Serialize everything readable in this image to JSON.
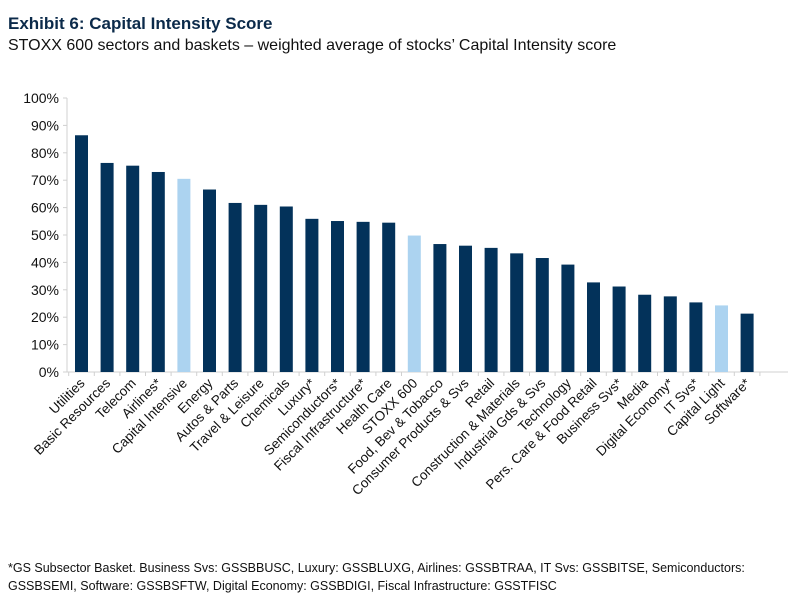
{
  "title": "Exhibit 6: Capital Intensity Score",
  "subtitle": "STOXX 600 sectors and baskets – weighted average of stocks’ Capital Intensity score",
  "footnote": "*GS Subsector Basket. Business Svs: GSSBBUSC, Luxury: GSSBLUXG, Airlines: GSSBTRAA, IT Svs: GSSBITSE, Semiconductors: GSSBSEMI, Software: GSSBSFTW, Digital Economy: GSSBDIGI, Fiscal Infrastructure: GSSTFISC",
  "colors": {
    "sector": "#03325a",
    "basket_highlight": "#acd3f0"
  },
  "chart_data": {
    "type": "bar",
    "title": "",
    "xlabel": "",
    "ylabel": "",
    "ylim": [
      0,
      100
    ],
    "yticks": [
      "0%",
      "10%",
      "20%",
      "30%",
      "40%",
      "50%",
      "60%",
      "70%",
      "80%",
      "90%",
      "100%"
    ],
    "grid": false,
    "categories": [
      "Utilities",
      "Basic Resources",
      "Telecom",
      "Airlines*",
      "Capital Intensive",
      "Energy",
      "Autos & Parts",
      "Travel & Leisure",
      "Chemicals",
      "Luxury*",
      "Semiconductors*",
      "Fiscal Infrastructure*",
      "Health Care",
      "STOXX 600",
      "Food, Bev & Tobacco",
      "Consumer Products & Svs",
      "Retail",
      "Construction & Materials",
      "Industrial Gds & Svs",
      "Technology",
      "Pers. Care & Food Retail",
      "Business Svs*",
      "Media",
      "Digital Economy*",
      "IT Svs*",
      "Capital Light",
      "Software*"
    ],
    "values": [
      86.4,
      76.3,
      75.3,
      73.0,
      70.5,
      66.6,
      61.7,
      61.0,
      60.4,
      55.9,
      55.1,
      54.8,
      54.5,
      49.8,
      46.7,
      46.1,
      45.3,
      43.3,
      41.6,
      39.2,
      32.7,
      31.2,
      28.2,
      27.6,
      25.4,
      24.3,
      21.3
    ],
    "highlighted": [
      "Capital Intensive",
      "STOXX 600",
      "Capital Light"
    ]
  }
}
